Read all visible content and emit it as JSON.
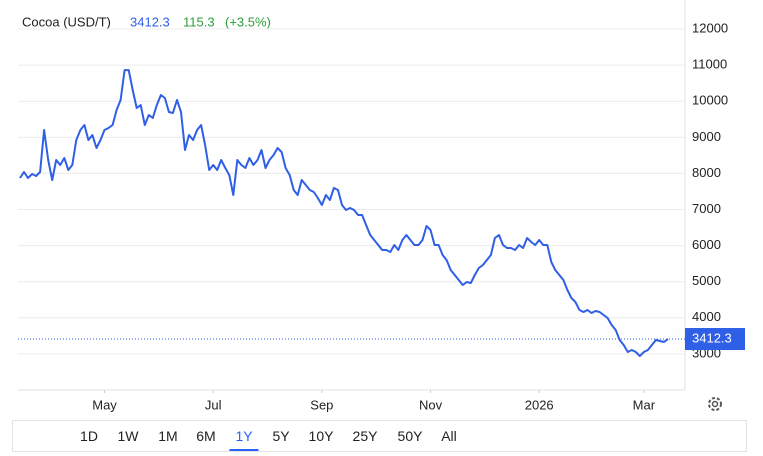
{
  "header": {
    "name": "Cocoa (USD/T)",
    "price": "3412.3",
    "change": "115.3",
    "change_pct": "(+3.5%)"
  },
  "chart_data": {
    "type": "line",
    "series": [
      {
        "name": "Cocoa (USD/T)",
        "color": "#2f5fe6",
        "values": [
          7873,
          8039,
          7873,
          7983,
          7928,
          8039,
          9202,
          8371,
          7817,
          8371,
          8233,
          8427,
          8094,
          8233,
          8925,
          9202,
          9341,
          8925,
          9064,
          8704,
          8925,
          9202,
          9258,
          9341,
          9756,
          10033,
          10864,
          10864,
          10310,
          9812,
          9894,
          9341,
          9618,
          9535,
          9894,
          10172,
          10089,
          9701,
          9673,
          10033,
          9701,
          8648,
          9064,
          8925,
          9202,
          9341,
          8787,
          8094,
          8233,
          8094,
          8371,
          8150,
          7955,
          7402,
          8371,
          8233,
          8150,
          8427,
          8233,
          8371,
          8648,
          8150,
          8371,
          8510,
          8704,
          8593,
          8150,
          7955,
          7540,
          7402,
          7817,
          7679,
          7540,
          7485,
          7319,
          7125,
          7402,
          7264,
          7596,
          7540,
          7125,
          6986,
          7042,
          6986,
          6848,
          6848,
          6571,
          6294,
          6155,
          6017,
          5878,
          5878,
          5823,
          6017,
          5878,
          6155,
          6294,
          6155,
          6017,
          6017,
          6155,
          6543,
          6432,
          6017,
          6017,
          5740,
          5601,
          5324,
          5186,
          5047,
          4909,
          4992,
          4964,
          5186,
          5380,
          5463,
          5601,
          5740,
          6211,
          6294,
          6017,
          5934,
          5934,
          5878,
          6017,
          5934,
          6211,
          6100,
          6017,
          6155,
          6017,
          6017,
          5546,
          5324,
          5186,
          5047,
          4770,
          4549,
          4438,
          4216,
          4161,
          4216,
          4133,
          4189,
          4161,
          4078,
          3994,
          3801,
          3662,
          3385,
          3246,
          3052,
          3108,
          3052,
          2942,
          3052,
          3108,
          3246,
          3385,
          3357,
          3330,
          3412.3
        ]
      }
    ],
    "xlim": [
      0,
      161
    ],
    "xticks": [
      {
        "value": 21,
        "label": "May"
      },
      {
        "value": 48,
        "label": "Jul"
      },
      {
        "value": 75,
        "label": "Sep"
      },
      {
        "value": 102,
        "label": "Nov"
      },
      {
        "value": 129,
        "label": "2026"
      },
      {
        "value": 155,
        "label": "Mar"
      }
    ],
    "ylim": [
      2000,
      12500
    ],
    "yticks": [
      3000,
      4000,
      5000,
      6000,
      7000,
      8000,
      9000,
      10000,
      11000,
      12000
    ],
    "grid": true
  },
  "ranges": [
    "1D",
    "1W",
    "1M",
    "6M",
    "1Y",
    "5Y",
    "10Y",
    "25Y",
    "50Y",
    "All"
  ],
  "selected_range": "1Y"
}
